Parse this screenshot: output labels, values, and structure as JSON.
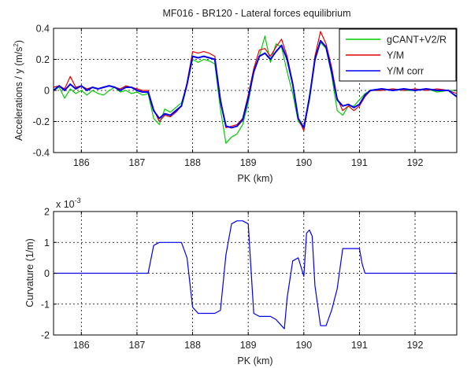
{
  "chart_data": [
    {
      "type": "line",
      "title": "MF016 - BR120 - Lateral forces equilibrium",
      "xlabel": "PK (km)",
      "ylabel": "Accelerations / y (m/s²)",
      "ylabel_main": "Accelerations / y (m/s",
      "ylabel_sup": "2",
      "ylabel_close": ")",
      "xlim": [
        185.5,
        192.75
      ],
      "ylim": [
        -0.4,
        0.4
      ],
      "grid": true,
      "legend_position": "top-right",
      "xticks": [
        186,
        187,
        188,
        189,
        190,
        191,
        192
      ],
      "xtick_labels": [
        "186",
        "187",
        "188",
        "189",
        "190",
        "191",
        "192"
      ],
      "yticks": [
        -0.4,
        -0.2,
        0,
        0.2,
        0.4
      ],
      "ytick_labels": [
        "-0.4",
        "-0.2",
        "0",
        "0.2",
        "0.4"
      ],
      "series": [
        {
          "name": "gCANT+V2/R",
          "color": "#00cc00",
          "x": [
            185.5,
            185.6,
            185.7,
            185.8,
            185.9,
            186.0,
            186.1,
            186.2,
            186.3,
            186.4,
            186.5,
            186.6,
            186.7,
            186.8,
            186.9,
            187.0,
            187.1,
            187.2,
            187.3,
            187.4,
            187.5,
            187.6,
            187.7,
            187.8,
            187.9,
            188.0,
            188.1,
            188.2,
            188.3,
            188.4,
            188.5,
            188.6,
            188.7,
            188.8,
            188.9,
            189.0,
            189.1,
            189.2,
            189.3,
            189.4,
            189.5,
            189.6,
            189.7,
            189.8,
            189.9,
            190.0,
            190.1,
            190.2,
            190.3,
            190.4,
            190.5,
            190.6,
            190.7,
            190.8,
            190.9,
            191.0,
            191.1,
            191.2,
            191.4,
            191.6,
            191.8,
            192.0,
            192.2,
            192.4,
            192.6,
            192.75
          ],
          "y": [
            0.0,
            0.02,
            -0.05,
            0.01,
            -0.02,
            0.0,
            -0.03,
            0.0,
            -0.02,
            -0.03,
            0.0,
            0.02,
            -0.01,
            0.0,
            -0.02,
            -0.01,
            -0.03,
            -0.02,
            -0.18,
            -0.22,
            -0.12,
            -0.14,
            -0.11,
            -0.08,
            0.04,
            0.2,
            0.18,
            0.2,
            0.19,
            0.17,
            -0.12,
            -0.34,
            -0.3,
            -0.28,
            -0.22,
            -0.08,
            0.12,
            0.22,
            0.35,
            0.18,
            0.3,
            0.28,
            0.12,
            -0.02,
            -0.2,
            -0.24,
            -0.03,
            0.19,
            0.31,
            0.27,
            0.1,
            -0.13,
            -0.16,
            -0.1,
            -0.1,
            -0.06,
            -0.02,
            0.0,
            0.0,
            0.01,
            0.0,
            0.0,
            0.01,
            -0.01,
            0.0,
            0.0
          ]
        },
        {
          "name": "Y/M",
          "color": "#e00000",
          "x": [
            185.5,
            185.6,
            185.7,
            185.8,
            185.9,
            186.0,
            186.1,
            186.2,
            186.3,
            186.4,
            186.5,
            186.6,
            186.7,
            186.8,
            186.9,
            187.0,
            187.1,
            187.2,
            187.3,
            187.4,
            187.5,
            187.6,
            187.7,
            187.8,
            187.9,
            188.0,
            188.1,
            188.2,
            188.3,
            188.4,
            188.5,
            188.6,
            188.7,
            188.8,
            188.9,
            189.0,
            189.1,
            189.2,
            189.3,
            189.4,
            189.5,
            189.6,
            189.7,
            189.8,
            189.9,
            190.0,
            190.1,
            190.2,
            190.3,
            190.4,
            190.5,
            190.6,
            190.7,
            190.8,
            190.9,
            191.0,
            191.1,
            191.2,
            191.4,
            191.6,
            191.8,
            192.0,
            192.2,
            192.4,
            192.6,
            192.75
          ],
          "y": [
            0.02,
            0.03,
            0.01,
            0.09,
            0.02,
            0.03,
            0.01,
            0.02,
            0.01,
            0.02,
            0.03,
            0.02,
            0.01,
            0.03,
            0.02,
            0.01,
            0.0,
            0.0,
            -0.12,
            -0.2,
            -0.16,
            -0.17,
            -0.14,
            -0.1,
            0.05,
            0.25,
            0.24,
            0.25,
            0.24,
            0.22,
            -0.05,
            -0.24,
            -0.23,
            -0.22,
            -0.18,
            -0.03,
            0.14,
            0.26,
            0.27,
            0.22,
            0.28,
            0.33,
            0.22,
            0.05,
            -0.18,
            -0.26,
            -0.05,
            0.22,
            0.38,
            0.3,
            0.15,
            -0.05,
            -0.13,
            -0.1,
            -0.13,
            -0.1,
            -0.04,
            0.0,
            0.0,
            0.01,
            0.0,
            0.01,
            0.0,
            0.01,
            0.0,
            -0.02
          ]
        },
        {
          "name": "Y/M corr",
          "color": "#0000ee",
          "x": [
            185.5,
            185.6,
            185.7,
            185.8,
            185.9,
            186.0,
            186.1,
            186.2,
            186.3,
            186.4,
            186.5,
            186.6,
            186.7,
            186.8,
            186.9,
            187.0,
            187.1,
            187.2,
            187.3,
            187.4,
            187.5,
            187.6,
            187.7,
            187.8,
            187.9,
            188.0,
            188.1,
            188.2,
            188.3,
            188.4,
            188.5,
            188.6,
            188.7,
            188.8,
            188.9,
            189.0,
            189.1,
            189.2,
            189.3,
            189.4,
            189.5,
            189.6,
            189.7,
            189.8,
            189.9,
            190.0,
            190.1,
            190.2,
            190.3,
            190.4,
            190.5,
            190.6,
            190.7,
            190.8,
            190.9,
            191.0,
            191.1,
            191.2,
            191.4,
            191.6,
            191.8,
            192.0,
            192.2,
            192.4,
            192.6,
            192.75
          ],
          "y": [
            0.0,
            0.03,
            0.0,
            0.04,
            0.01,
            0.03,
            0.0,
            0.02,
            0.01,
            0.02,
            0.03,
            0.02,
            0.0,
            0.02,
            0.02,
            0.0,
            -0.01,
            -0.01,
            -0.13,
            -0.18,
            -0.15,
            -0.16,
            -0.13,
            -0.1,
            0.04,
            0.22,
            0.21,
            0.22,
            0.21,
            0.2,
            -0.07,
            -0.23,
            -0.24,
            -0.23,
            -0.19,
            -0.05,
            0.12,
            0.22,
            0.24,
            0.2,
            0.25,
            0.29,
            0.2,
            0.04,
            -0.18,
            -0.24,
            -0.05,
            0.2,
            0.32,
            0.28,
            0.12,
            -0.06,
            -0.1,
            -0.09,
            -0.11,
            -0.09,
            -0.03,
            0.0,
            0.01,
            0.0,
            0.01,
            0.0,
            0.01,
            0.0,
            0.0,
            -0.04
          ]
        }
      ]
    },
    {
      "type": "line",
      "title": "",
      "xlabel": "PK (km)",
      "ylabel": "Curvature (1/m)",
      "xlim": [
        185.5,
        192.75
      ],
      "ylim": [
        -0.002,
        0.002
      ],
      "y_scale_label": "x 10",
      "y_scale_exponent": "-3",
      "grid": true,
      "xticks": [
        186,
        187,
        188,
        189,
        190,
        191,
        192
      ],
      "xtick_labels": [
        "186",
        "187",
        "188",
        "189",
        "190",
        "191",
        "192"
      ],
      "yticks": [
        -0.002,
        -0.001,
        0,
        0.001,
        0.002
      ],
      "ytick_labels": [
        "-2",
        "-1",
        "0",
        "1",
        "2"
      ],
      "series": [
        {
          "color": "#0000ee",
          "x": [
            185.5,
            186.0,
            186.5,
            187.0,
            187.2,
            187.3,
            187.4,
            187.5,
            187.7,
            187.8,
            187.9,
            188.0,
            188.1,
            188.2,
            188.4,
            188.5,
            188.6,
            188.7,
            188.8,
            188.9,
            189.0,
            189.1,
            189.2,
            189.4,
            189.5,
            189.6,
            189.65,
            189.7,
            189.8,
            189.9,
            189.95,
            190.0,
            190.05,
            190.1,
            190.15,
            190.2,
            190.3,
            190.4,
            190.5,
            190.6,
            190.7,
            190.8,
            191.0,
            191.05,
            191.1,
            191.2,
            191.5,
            192.0,
            192.5,
            192.75
          ],
          "y": [
            0.0,
            0.0,
            0.0,
            0.0,
            0.0,
            0.0009,
            0.001,
            0.001,
            0.001,
            0.001,
            0.0005,
            -0.0011,
            -0.0013,
            -0.0013,
            -0.0013,
            -0.0012,
            0.0006,
            0.0016,
            0.0017,
            0.0017,
            0.0016,
            -0.0013,
            -0.0014,
            -0.0014,
            -0.0015,
            -0.0017,
            -0.0018,
            -0.0008,
            0.0004,
            0.0005,
            0.0002,
            -0.0001,
            0.0013,
            0.0014,
            0.0012,
            -0.0004,
            -0.0017,
            -0.0017,
            -0.0012,
            -0.0005,
            0.0008,
            0.0008,
            0.0008,
            0.0003,
            0.0,
            0.0,
            0.0,
            0.0,
            0.0,
            0.0
          ]
        }
      ]
    }
  ]
}
